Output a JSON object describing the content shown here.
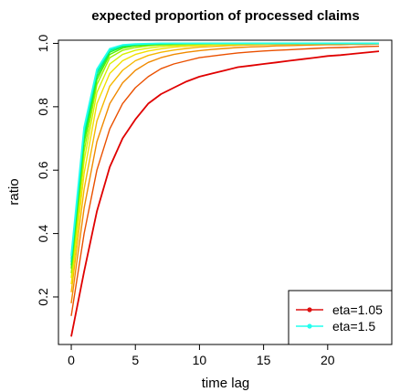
{
  "chart_data": {
    "type": "line",
    "title": "expected proportion of processed claims",
    "xlabel": "time lag",
    "ylabel": "ratio",
    "xlim": [
      -1,
      25
    ],
    "ylim": [
      0.05,
      1.01
    ],
    "x_ticks": [
      0,
      5,
      10,
      15,
      20
    ],
    "y_ticks": [
      0.2,
      0.4,
      0.6,
      0.8,
      1.0
    ],
    "x_tick_labels": [
      "0",
      "5",
      "10",
      "15",
      "20"
    ],
    "y_tick_labels": [
      "0.2",
      "0.4",
      "0.6",
      "0.8",
      "1.0"
    ],
    "legend_position": "bottom-right",
    "legend": [
      {
        "label": "eta=1.05",
        "color": "#dd1111"
      },
      {
        "label": "eta=1.5",
        "color": "#22ffee"
      }
    ],
    "x": [
      0,
      1,
      2,
      3,
      4,
      5,
      6,
      7,
      8,
      9,
      10,
      11,
      12,
      13,
      14,
      15,
      16,
      17,
      18,
      19,
      20,
      21,
      22,
      23,
      24
    ],
    "series": [
      {
        "color": "#e00000",
        "values": [
          0.075,
          0.28,
          0.47,
          0.61,
          0.7,
          0.76,
          0.81,
          0.84,
          0.86,
          0.88,
          0.895,
          0.905,
          0.915,
          0.925,
          0.93,
          0.935,
          0.94,
          0.945,
          0.95,
          0.955,
          0.96,
          0.963,
          0.967,
          0.971,
          0.975
        ]
      },
      {
        "color": "#ea5000",
        "values": [
          0.14,
          0.4,
          0.6,
          0.73,
          0.81,
          0.86,
          0.895,
          0.92,
          0.935,
          0.945,
          0.955,
          0.96,
          0.965,
          0.97,
          0.973,
          0.976,
          0.978,
          0.98,
          0.982,
          0.984,
          0.986,
          0.987,
          0.988,
          0.99,
          0.991
        ]
      },
      {
        "color": "#f08a00",
        "values": [
          0.18,
          0.48,
          0.69,
          0.81,
          0.875,
          0.915,
          0.94,
          0.955,
          0.965,
          0.972,
          0.977,
          0.981,
          0.984,
          0.987,
          0.989,
          0.99,
          0.992,
          0.993,
          0.994,
          0.995,
          0.996,
          0.996,
          0.997,
          0.997,
          0.998
        ]
      },
      {
        "color": "#f5b800",
        "values": [
          0.215,
          0.54,
          0.755,
          0.865,
          0.915,
          0.945,
          0.962,
          0.972,
          0.979,
          0.984,
          0.988,
          0.99,
          0.992,
          0.994,
          0.995,
          0.996,
          0.997,
          0.997,
          0.998,
          0.998,
          0.999,
          0.999,
          0.999,
          0.999,
          1.0
        ]
      },
      {
        "color": "#f2e000",
        "values": [
          0.24,
          0.59,
          0.81,
          0.905,
          0.945,
          0.965,
          0.976,
          0.983,
          0.988,
          0.991,
          0.993,
          0.995,
          0.996,
          0.997,
          0.998,
          0.998,
          0.999,
          0.999,
          0.999,
          1.0,
          1.0,
          1.0,
          1.0,
          1.0,
          1.0
        ]
      },
      {
        "color": "#d8f000",
        "values": [
          0.26,
          0.63,
          0.845,
          0.935,
          0.965,
          0.978,
          0.985,
          0.99,
          0.993,
          0.995,
          0.996,
          0.997,
          0.998,
          0.998,
          0.999,
          0.999,
          0.999,
          1.0,
          1.0,
          1.0,
          1.0,
          1.0,
          1.0,
          1.0,
          1.0
        ]
      },
      {
        "color": "#9bf000",
        "values": [
          0.275,
          0.66,
          0.87,
          0.955,
          0.978,
          0.987,
          0.992,
          0.995,
          0.996,
          0.997,
          0.998,
          0.999,
          0.999,
          0.999,
          1.0,
          1.0,
          1.0,
          1.0,
          1.0,
          1.0,
          1.0,
          1.0,
          1.0,
          1.0,
          1.0
        ]
      },
      {
        "color": "#55f000",
        "values": [
          0.29,
          0.685,
          0.885,
          0.965,
          0.985,
          0.992,
          0.995,
          0.997,
          0.998,
          0.999,
          0.999,
          1.0,
          1.0,
          1.0,
          1.0,
          1.0,
          1.0,
          1.0,
          1.0,
          1.0,
          1.0,
          1.0,
          1.0,
          1.0,
          1.0
        ]
      },
      {
        "color": "#18f038",
        "values": [
          0.3,
          0.7,
          0.895,
          0.972,
          0.989,
          0.995,
          0.997,
          0.998,
          0.999,
          0.999,
          1.0,
          1.0,
          1.0,
          1.0,
          1.0,
          1.0,
          1.0,
          1.0,
          1.0,
          1.0,
          1.0,
          1.0,
          1.0,
          1.0,
          1.0
        ]
      },
      {
        "color": "#00f080",
        "values": [
          0.31,
          0.715,
          0.905,
          0.977,
          0.992,
          0.996,
          0.998,
          0.999,
          1.0,
          1.0,
          1.0,
          1.0,
          1.0,
          1.0,
          1.0,
          1.0,
          1.0,
          1.0,
          1.0,
          1.0,
          1.0,
          1.0,
          1.0,
          1.0,
          1.0
        ]
      },
      {
        "color": "#00f0c0",
        "values": [
          0.32,
          0.725,
          0.912,
          0.98,
          0.994,
          0.997,
          0.999,
          1.0,
          1.0,
          1.0,
          1.0,
          1.0,
          1.0,
          1.0,
          1.0,
          1.0,
          1.0,
          1.0,
          1.0,
          1.0,
          1.0,
          1.0,
          1.0,
          1.0,
          1.0
        ]
      },
      {
        "color": "#22ffee",
        "values": [
          0.33,
          0.735,
          0.918,
          0.983,
          0.995,
          0.998,
          0.999,
          1.0,
          1.0,
          1.0,
          1.0,
          1.0,
          1.0,
          1.0,
          1.0,
          1.0,
          1.0,
          1.0,
          1.0,
          1.0,
          1.0,
          1.0,
          1.0,
          1.0,
          1.0
        ]
      }
    ]
  }
}
